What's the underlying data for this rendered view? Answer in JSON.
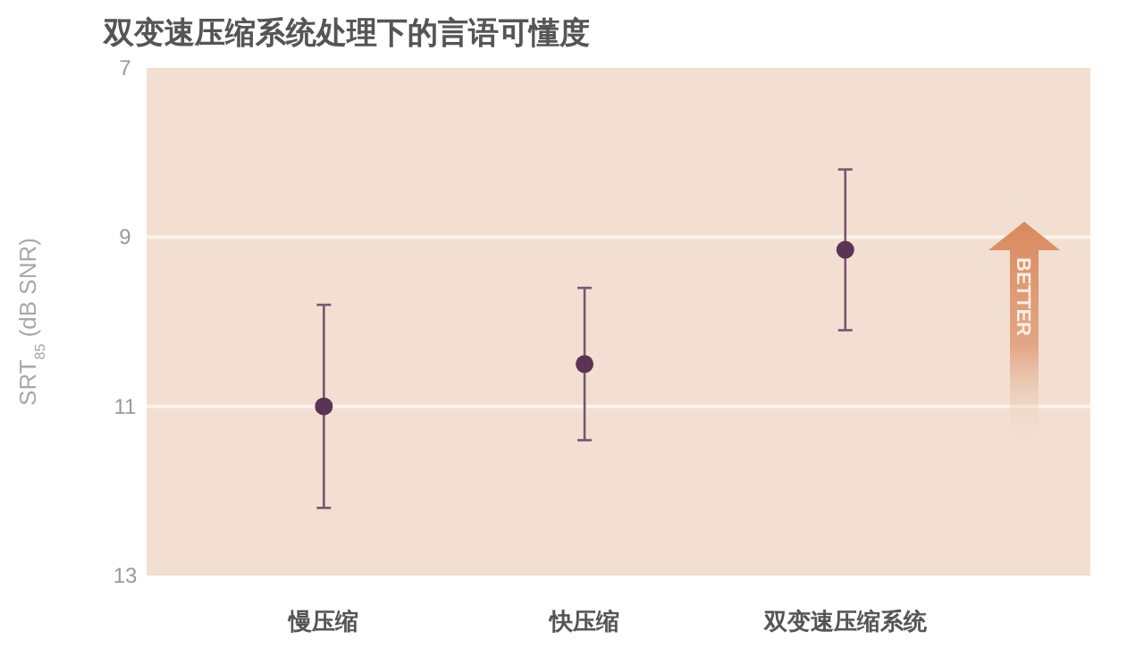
{
  "chart_data": {
    "type": "scatter",
    "title": "双变速压缩系统处理下的言语可懂度",
    "ylabel": "SRT$_{85}$ (dB SNR)",
    "categories": [
      "慢压缩",
      "快压缩",
      "双变速压缩系统"
    ],
    "series": [
      {
        "color": "#5a3355",
        "values": [
          11.0,
          10.5,
          9.15
        ],
        "errors": [
          [
            9.8,
            12.2
          ],
          [
            9.6,
            11.4
          ],
          [
            8.2,
            10.1
          ]
        ]
      }
    ],
    "ylim": [
      13,
      7
    ],
    "yticks": [
      7,
      9,
      11,
      13
    ],
    "grid": "y",
    "marker": "circle",
    "annotations": [
      "BETTER"
    ]
  }
}
